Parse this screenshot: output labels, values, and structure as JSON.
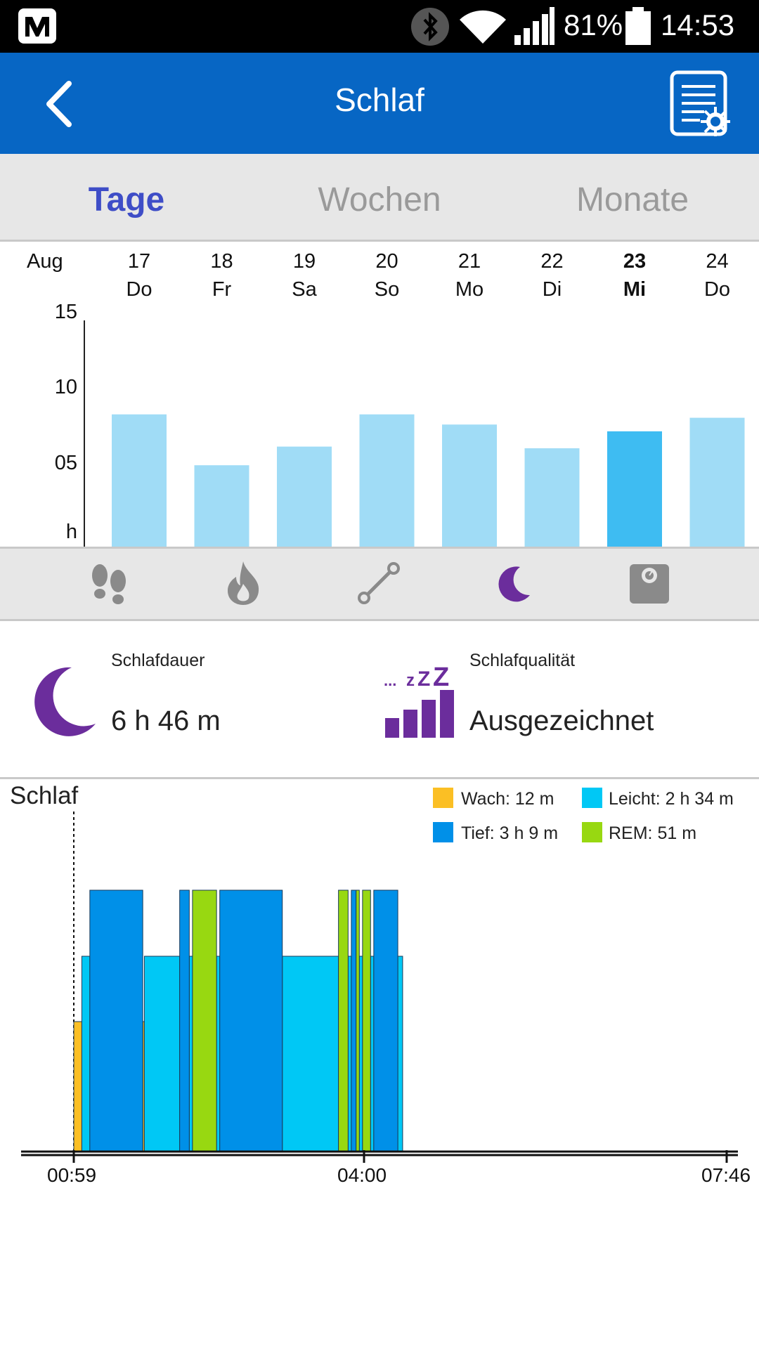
{
  "status_bar": {
    "battery_percent": "81%",
    "time": "14:53"
  },
  "app_bar": {
    "title": "Schlaf",
    "back_icon": "chevron-left-icon",
    "action_icon": "report-settings-icon"
  },
  "tabs": [
    {
      "label": "Tage",
      "active": true
    },
    {
      "label": "Wochen",
      "active": false
    },
    {
      "label": "Monate",
      "active": false
    }
  ],
  "day_chart": {
    "month_label": "Aug",
    "unit_label": "h",
    "y_ticks": [
      "15",
      "10",
      "05"
    ],
    "days": [
      {
        "date": "17",
        "weekday": "Do",
        "hours": 7.8,
        "selected": false
      },
      {
        "date": "18",
        "weekday": "Fr",
        "hours": 4.8,
        "selected": false
      },
      {
        "date": "19",
        "weekday": "Sa",
        "hours": 5.9,
        "selected": false
      },
      {
        "date": "20",
        "weekday": "So",
        "hours": 7.8,
        "selected": false
      },
      {
        "date": "21",
        "weekday": "Mo",
        "hours": 7.2,
        "selected": false
      },
      {
        "date": "22",
        "weekday": "Di",
        "hours": 5.8,
        "selected": false
      },
      {
        "date": "23",
        "weekday": "Mi",
        "hours": 6.8,
        "selected": true
      },
      {
        "date": "24",
        "weekday": "Do",
        "hours": 7.6,
        "selected": false
      }
    ],
    "colors": {
      "bar": "#a0dcf6",
      "bar_selected": "#3ebcf2"
    }
  },
  "metric_icons": [
    "footsteps-icon",
    "flame-icon",
    "distance-icon",
    "moon-icon",
    "scale-icon"
  ],
  "summary": {
    "duration_label": "Schlafdauer",
    "duration_value": "6 h 46 m",
    "quality_label": "Schlafqualität",
    "quality_value": "Ausgezeichnet"
  },
  "sleep_chart": {
    "title": "Schlaf",
    "legend": [
      {
        "label": "Wach: 12 m",
        "color": "#fbbf24"
      },
      {
        "label": "Leicht: 2 h 34 m",
        "color": "#00c8f5"
      },
      {
        "label": "Tief: 3 h 9 m",
        "color": "#0090e8"
      },
      {
        "label": "REM: 51 m",
        "color": "#98d811"
      }
    ],
    "x_ticks": [
      "00:59",
      "04:00",
      "07:46"
    ]
  },
  "chart_data": {
    "type": "bar",
    "categories": [
      "17 Do",
      "18 Fr",
      "19 Sa",
      "20 So",
      "21 Mo",
      "22 Di",
      "23 Mi",
      "24 Do"
    ],
    "values": [
      7.8,
      4.8,
      5.9,
      7.8,
      7.2,
      5.8,
      6.8,
      7.6
    ],
    "ylabel": "h",
    "ylim": [
      0,
      15
    ],
    "y_ticks": [
      "05",
      "10",
      "15"
    ],
    "sleep_stages": {
      "type": "timeline",
      "x_range": [
        "00:59",
        "07:46"
      ],
      "levels": {
        "Wach": 1,
        "Leicht": 2,
        "Tief": 3,
        "REM": 3
      },
      "segments": [
        {
          "stage": "Wach",
          "start": "00:59",
          "end": "01:04"
        },
        {
          "stage": "Leicht",
          "start": "01:04",
          "end": "01:09"
        },
        {
          "stage": "Tief",
          "start": "01:09",
          "end": "01:42"
        },
        {
          "stage": "Wach",
          "start": "01:42",
          "end": "01:43"
        },
        {
          "stage": "Leicht",
          "start": "01:43",
          "end": "02:05"
        },
        {
          "stage": "Tief",
          "start": "02:05",
          "end": "02:11"
        },
        {
          "stage": "Leicht",
          "start": "02:11",
          "end": "02:13"
        },
        {
          "stage": "REM",
          "start": "02:13",
          "end": "02:28"
        },
        {
          "stage": "Leicht",
          "start": "02:28",
          "end": "02:30"
        },
        {
          "stage": "Tief",
          "start": "02:30",
          "end": "03:09"
        },
        {
          "stage": "Leicht",
          "start": "03:09",
          "end": "03:44"
        },
        {
          "stage": "REM",
          "start": "03:44",
          "end": "03:50"
        },
        {
          "stage": "Leicht",
          "start": "03:50",
          "end": "03:52"
        },
        {
          "stage": "Tief",
          "start": "03:52",
          "end": "03:55"
        },
        {
          "stage": "REM",
          "start": "03:55",
          "end": "03:57"
        },
        {
          "stage": "Leicht",
          "start": "03:57",
          "end": "03:59"
        },
        {
          "stage": "REM",
          "start": "03:59",
          "end": "04:04"
        },
        {
          "stage": "Leicht",
          "start": "04:04",
          "end": "04:06"
        },
        {
          "stage": "Tief",
          "start": "04:06",
          "end": "04:21"
        },
        {
          "stage": "Leicht",
          "start": "04:21",
          "end": "04:24"
        }
      ]
    }
  }
}
